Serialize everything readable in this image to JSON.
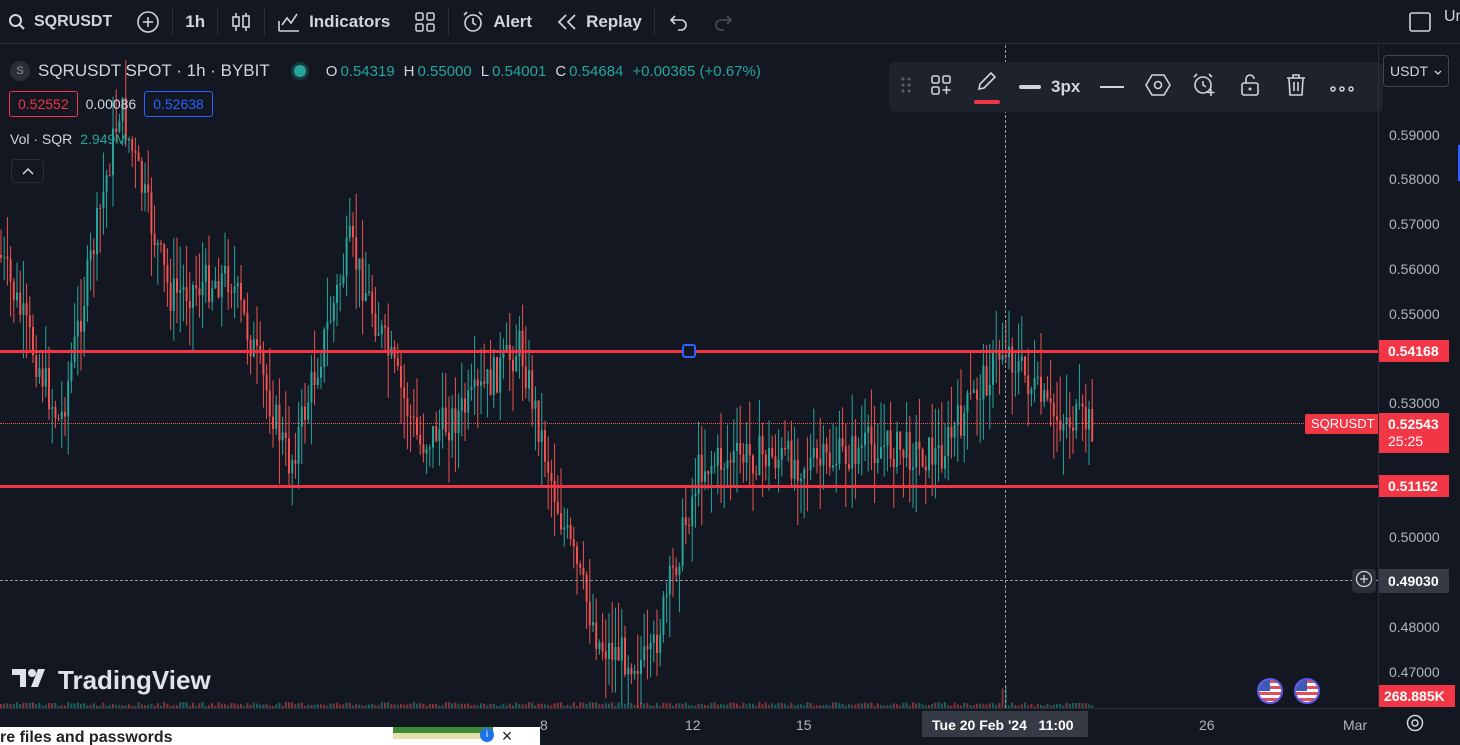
{
  "topbar": {
    "symbol": "SQRUSDT",
    "interval": "1h",
    "indicators_label": "Indicators",
    "alert_label": "Alert",
    "replay_label": "Replay",
    "right_cut_text": "Ur"
  },
  "legend": {
    "title": "SQRUSDT SPOT · 1h · BYBIT",
    "open_key": "O",
    "open": "0.54319",
    "high_key": "H",
    "high": "0.55000",
    "low_key": "L",
    "low": "0.54001",
    "close_key": "C",
    "close": "0.54684",
    "change": "+0.00365 (+0.67%)",
    "bid": "0.52552",
    "spread": "0.00086",
    "ask": "0.52638",
    "vol_label": "Vol · SQR",
    "vol_value": "2.949M",
    "symbol_badge": "S"
  },
  "drawing_toolbar": {
    "width_label": "3px"
  },
  "price_axis": {
    "currency": "USDT",
    "ticks": [
      "0.59000",
      "0.58000",
      "0.57000",
      "0.56000",
      "0.55000",
      "0.53000",
      "0.50000",
      "0.48000",
      "0.47000"
    ],
    "line_upper": "0.54168",
    "line_lower": "0.51152",
    "current_symbol": "SQRUSDT",
    "current_price": "0.52543",
    "countdown": "25:25",
    "crosshair_price": "0.49030",
    "volume_label": "268.885K"
  },
  "time_axis": {
    "labels": [
      "8",
      "12",
      "15",
      "26",
      "Mar"
    ],
    "crosshair_time": "Tue 20 Feb '24   11:00"
  },
  "watermark": "TradingView",
  "bottom_bar": {
    "text": "re files and passwords"
  },
  "colors": {
    "background": "#131722",
    "up": "#26a69a",
    "down": "#ef5350",
    "line": "#f23645",
    "accent": "#2962ff"
  }
}
